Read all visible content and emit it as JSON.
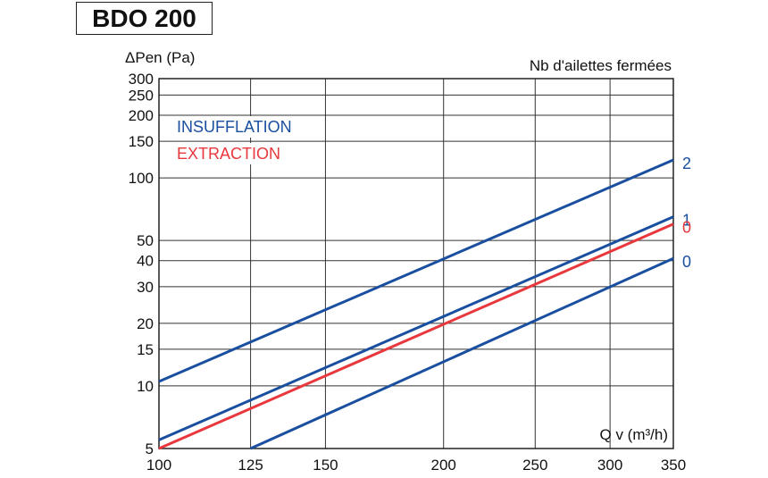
{
  "chart_data": {
    "type": "line",
    "title": "BDO 200",
    "ylabel": "ΔPen (Pa)",
    "xlabel": "Q v (m³/h)",
    "legend_title": "Nb d'ailettes fermées",
    "x_scale": "log",
    "y_scale": "log",
    "xlim": [
      100,
      350
    ],
    "ylim": [
      5,
      300
    ],
    "x_ticks": [
      100,
      125,
      150,
      200,
      250,
      300,
      350
    ],
    "y_ticks": [
      5,
      10,
      15,
      20,
      30,
      40,
      50,
      100,
      150,
      200,
      250,
      300
    ],
    "grid": true,
    "legend": [
      {
        "name": "INSUFFLATION",
        "color": "#1a4fa0"
      },
      {
        "name": "EXTRACTION",
        "color": "#e8383d"
      }
    ],
    "series": [
      {
        "group": "INSUFFLATION",
        "label": "2",
        "color": "#1a4fa0",
        "x": [
          100,
          350
        ],
        "y": [
          10.5,
          122
        ]
      },
      {
        "group": "INSUFFLATION",
        "label": "1",
        "color": "#1a4fa0",
        "x": [
          100,
          350
        ],
        "y": [
          5.5,
          65
        ]
      },
      {
        "group": "EXTRACTION",
        "label": "0",
        "color": "#e8383d",
        "x": [
          100,
          350
        ],
        "y": [
          5,
          60
        ]
      },
      {
        "group": "INSUFFLATION",
        "label": "0",
        "color": "#1a4fa0",
        "x": [
          125,
          350
        ],
        "y": [
          5,
          41
        ]
      }
    ]
  }
}
